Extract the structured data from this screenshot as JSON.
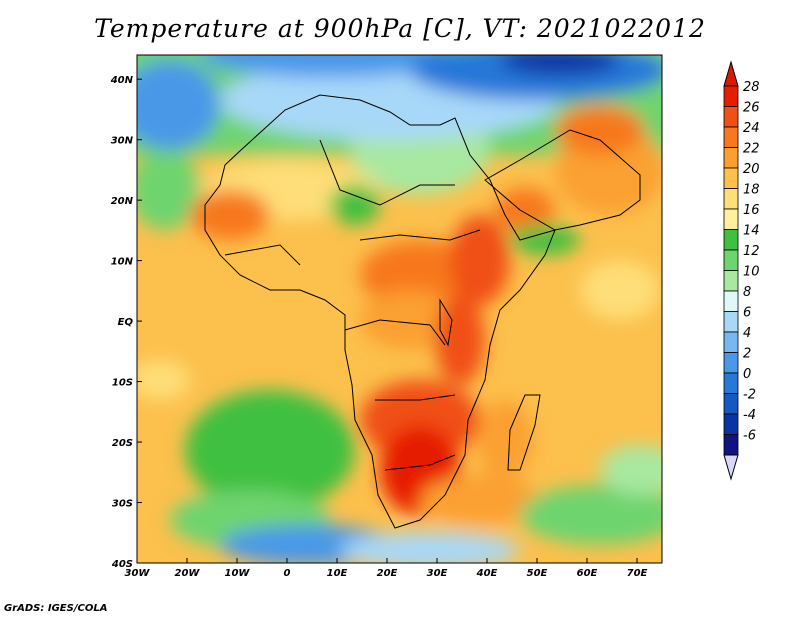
{
  "title": "Temperature at 900hPa [C], VT: 2021022012",
  "footer": "GrADS: IGES/COLA",
  "map": {
    "lon_range": [
      -30,
      75
    ],
    "lat_range": [
      -40,
      44
    ],
    "lon_ticks": [
      {
        "value": -30,
        "label": "30W"
      },
      {
        "value": -20,
        "label": "20W"
      },
      {
        "value": -10,
        "label": "10W"
      },
      {
        "value": 0,
        "label": "0"
      },
      {
        "value": 10,
        "label": "10E"
      },
      {
        "value": 20,
        "label": "20E"
      },
      {
        "value": 30,
        "label": "30E"
      },
      {
        "value": 40,
        "label": "40E"
      },
      {
        "value": 50,
        "label": "50E"
      },
      {
        "value": 60,
        "label": "60E"
      },
      {
        "value": 70,
        "label": "70E"
      }
    ],
    "lat_ticks": [
      {
        "value": 40,
        "label": "40N"
      },
      {
        "value": 30,
        "label": "30N"
      },
      {
        "value": 20,
        "label": "20N"
      },
      {
        "value": 10,
        "label": "10N"
      },
      {
        "value": 0,
        "label": "EQ"
      },
      {
        "value": -10,
        "label": "10S"
      },
      {
        "value": -20,
        "label": "20S"
      },
      {
        "value": -30,
        "label": "30S"
      },
      {
        "value": -40,
        "label": "40S"
      }
    ]
  },
  "colorbar": {
    "levels": [
      "28",
      "26",
      "24",
      "22",
      "20",
      "18",
      "16",
      "14",
      "12",
      "10",
      "8",
      "6",
      "4",
      "2",
      "0",
      "-2",
      "-4",
      "-6"
    ],
    "colors": [
      "#e61e00",
      "#f05014",
      "#f7781e",
      "#fba030",
      "#fcc04c",
      "#fede78",
      "#fef0a0",
      "#40c040",
      "#6ed46e",
      "#a8e8a0",
      "#e0f8f8",
      "#a8d8f8",
      "#78b8f0",
      "#4a98e8",
      "#2878d8",
      "#1458c4",
      "#0834a4",
      "#101480"
    ],
    "top_color": "#d81800",
    "bottom_color": "#d8d8f8"
  }
}
